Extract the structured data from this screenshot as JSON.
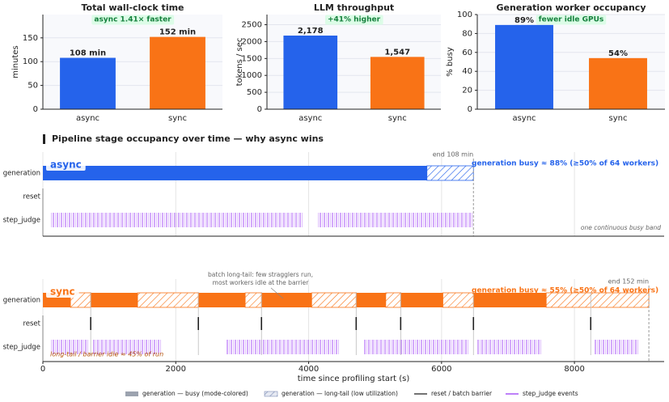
{
  "chart_data": [
    {
      "type": "bar",
      "title": "Total wall-clock time",
      "annotation": "async 1.41× faster",
      "ylabel": "minutes",
      "categories": [
        "async",
        "sync"
      ],
      "values": [
        108,
        152
      ],
      "value_labels": [
        "108 min",
        "152 min"
      ],
      "colors": [
        "#2563eb",
        "#f97316"
      ],
      "ylim": [
        0,
        199
      ],
      "yticks": [
        0,
        50,
        100,
        150
      ],
      "grid": true
    },
    {
      "type": "bar",
      "title": "LLM throughput",
      "annotation": "+41% higher",
      "ylabel": "tokens / sec",
      "categories": [
        "async",
        "sync"
      ],
      "values": [
        2178,
        1547
      ],
      "value_labels": [
        "2,178",
        "1,547"
      ],
      "colors": [
        "#2563eb",
        "#f97316"
      ],
      "ylim": [
        0,
        2800
      ],
      "yticks": [
        0,
        500,
        1000,
        1500,
        2000,
        2500
      ],
      "grid": true
    },
    {
      "type": "bar",
      "title": "Generation worker occupancy",
      "annotation": "fewer idle GPUs",
      "ylabel": "% busy",
      "categories": [
        "async",
        "sync"
      ],
      "values": [
        89,
        54
      ],
      "value_labels": [
        "89%",
        "54%"
      ],
      "colors": [
        "#2563eb",
        "#f97316"
      ],
      "ylim": [
        0,
        100
      ],
      "yticks": [
        0,
        20,
        40,
        60,
        80,
        100
      ],
      "grid": true
    },
    {
      "type": "timeline",
      "title": "Pipeline stage occupancy over time — why async wins",
      "xlabel": "time since profiling start  (s)",
      "xlim": [
        0,
        9350
      ],
      "xticks": [
        0,
        2000,
        4000,
        6000,
        8000
      ],
      "grid": true,
      "rows": [
        "generation",
        "reset",
        "step_judge"
      ],
      "step_judge_color": "#a855f7",
      "barrier_color": "#222222",
      "panels": [
        {
          "name": "async",
          "color": "#2563eb",
          "end": 6480,
          "end_label": "end 108 min",
          "busy_label": "generation busy ≈ 88%  (≥50% of 64 workers)",
          "note": "one continuous busy band",
          "busy": [
            [
              0,
              5780
            ]
          ],
          "longtail": [
            [
              5780,
              6480
            ]
          ],
          "barriers": [],
          "step_judge": [
            [
              110,
              3920
            ],
            [
              4130,
              6480
            ]
          ]
        },
        {
          "name": "sync",
          "color": "#f97316",
          "end": 9120,
          "end_label": "end 152 min",
          "busy_label": "generation busy ≈ 55%  (≥50% of 64 workers)",
          "note": "long-tail / barrier idle ≈ 45% of run",
          "callout": [
            "batch long-tail: few stragglers run,",
            "most workers idle at the barrier"
          ],
          "busy": [
            [
              0,
              415
            ],
            [
              720,
              1425
            ],
            [
              2340,
              3045
            ],
            [
              3290,
              4045
            ],
            [
              4715,
              5160
            ],
            [
              5385,
              6020
            ],
            [
              6480,
              7575
            ]
          ],
          "longtail": [
            [
              415,
              720
            ],
            [
              1425,
              2340
            ],
            [
              3045,
              3290
            ],
            [
              4045,
              4715
            ],
            [
              5160,
              5385
            ],
            [
              6020,
              6480
            ],
            [
              7575,
              9120
            ]
          ],
          "barriers": [
            720,
            2340,
            3290,
            4715,
            5385,
            6480,
            8245
          ],
          "step_judge": [
            [
              110,
              700
            ],
            [
              760,
              1790
            ],
            [
              2765,
              4470
            ],
            [
              4835,
              6420
            ],
            [
              6540,
              7515
            ],
            [
              8305,
              8975
            ]
          ]
        }
      ],
      "legend": [
        "generation — busy (mode-colored)",
        "generation — long-tail (low utilization)",
        "reset / batch barrier",
        "step_judge events"
      ]
    }
  ]
}
